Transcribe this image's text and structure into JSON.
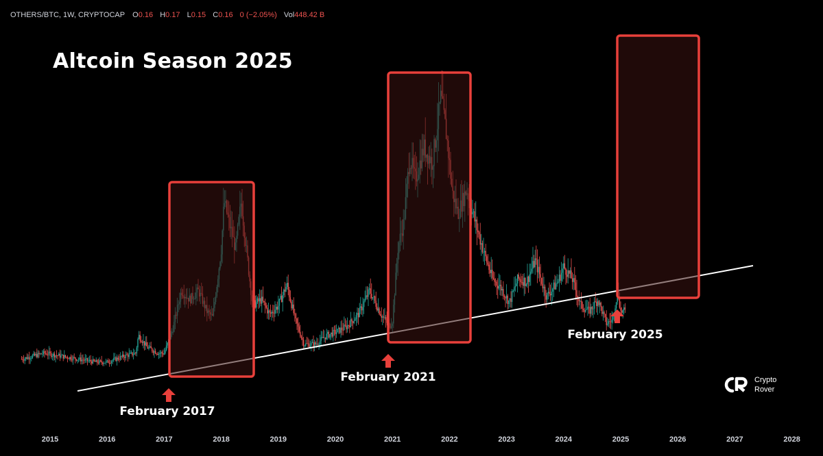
{
  "legend": {
    "symbol": "OTHERS/BTC, 1W, CRYPTOCAP",
    "o_label": "O",
    "o_value": "0.16",
    "h_label": "H",
    "h_value": "0.17",
    "l_label": "L",
    "l_value": "0.15",
    "c_label": "C",
    "c_value": "0.16",
    "change": "0 (−2.05%)",
    "vol_label": "Vol",
    "vol_value": "448.42 B"
  },
  "annotations": {
    "feb2017": "February 2017",
    "feb2021": "February 2021",
    "feb2025": "February 2025"
  },
  "brand": {
    "line1": "Crypto",
    "line2": "Rover"
  },
  "colors": {
    "up": "#26a69a",
    "down": "#ef5350",
    "box_stroke": "#e8403b",
    "box_fill": "#3a1210",
    "arrow": "#e8403b",
    "trendline": "#ffffff"
  },
  "chart_data": {
    "type": "line",
    "title": "Altcoin Season 2025",
    "x_label": "",
    "y_label": "",
    "x_ticks": [
      "2015",
      "2016",
      "2017",
      "2018",
      "2019",
      "2020",
      "2021",
      "2022",
      "2023",
      "2024",
      "2025",
      "2026",
      "2027",
      "2028"
    ],
    "x_range": [
      2014.5,
      2028.5
    ],
    "y_range_relative": [
      0,
      1
    ],
    "y_axis_shown": false,
    "series": [
      {
        "name": "OTHERS/BTC weekly (relative level, approx.)",
        "x": [
          2014.5,
          2014.9,
          2015.2,
          2015.5,
          2015.8,
          2016.0,
          2016.3,
          2016.5,
          2016.55,
          2016.7,
          2016.9,
          2017.0,
          2017.15,
          2017.3,
          2017.45,
          2017.6,
          2017.75,
          2017.85,
          2018.0,
          2018.05,
          2018.15,
          2018.25,
          2018.35,
          2018.45,
          2018.55,
          2018.7,
          2018.85,
          2019.0,
          2019.15,
          2019.3,
          2019.45,
          2019.65,
          2019.85,
          2020.0,
          2020.2,
          2020.4,
          2020.6,
          2020.8,
          2020.95,
          2021.0,
          2021.1,
          2021.2,
          2021.3,
          2021.4,
          2021.55,
          2021.7,
          2021.85,
          2021.95,
          2022.05,
          2022.15,
          2022.3,
          2022.45,
          2022.6,
          2022.75,
          2022.9,
          2023.05,
          2023.2,
          2023.35,
          2023.5,
          2023.7,
          2023.9,
          2024.0,
          2024.15,
          2024.3,
          2024.45,
          2024.6,
          2024.75,
          2024.85,
          2024.95,
          2025.0,
          2025.05
        ],
        "y": [
          0.07,
          0.09,
          0.08,
          0.07,
          0.06,
          0.06,
          0.08,
          0.09,
          0.15,
          0.11,
          0.09,
          0.09,
          0.17,
          0.3,
          0.27,
          0.3,
          0.23,
          0.21,
          0.44,
          0.6,
          0.52,
          0.44,
          0.6,
          0.42,
          0.25,
          0.27,
          0.22,
          0.25,
          0.32,
          0.2,
          0.12,
          0.12,
          0.15,
          0.16,
          0.18,
          0.22,
          0.3,
          0.22,
          0.18,
          0.2,
          0.45,
          0.53,
          0.75,
          0.67,
          0.78,
          0.73,
          0.95,
          0.82,
          0.63,
          0.56,
          0.64,
          0.53,
          0.43,
          0.34,
          0.31,
          0.26,
          0.34,
          0.33,
          0.4,
          0.28,
          0.33,
          0.38,
          0.34,
          0.25,
          0.23,
          0.27,
          0.19,
          0.2,
          0.3,
          0.23,
          0.23
        ]
      }
    ],
    "trendline": {
      "from_x": 2015.2,
      "to_x": 2027.3,
      "note": "rising support line"
    },
    "highlight_boxes": [
      {
        "from_x": 2017.1,
        "to_x": 2018.6,
        "label": "February 2017"
      },
      {
        "from_x": 2020.95,
        "to_x": 2022.35,
        "label": "February 2021"
      },
      {
        "from_x": 2024.95,
        "to_x": 2026.4,
        "label": "February 2025"
      }
    ]
  }
}
